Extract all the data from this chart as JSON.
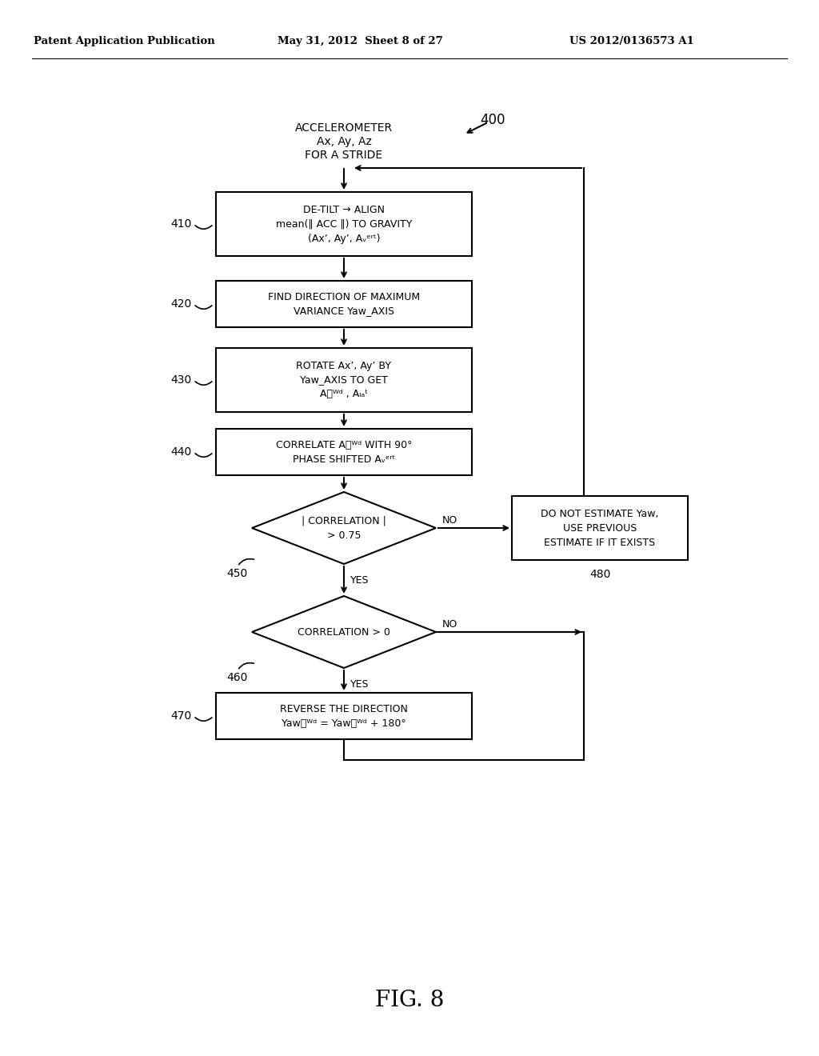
{
  "bg_color": "#ffffff",
  "header_left": "Patent Application Publication",
  "header_mid": "May 31, 2012  Sheet 8 of 27",
  "header_right": "US 2012/0136573 A1",
  "fig_label": "FIG. 8",
  "lw": 1.5,
  "font_size_body": 9,
  "font_size_label": 10,
  "font_size_header": 9,
  "font_size_fig": 20
}
